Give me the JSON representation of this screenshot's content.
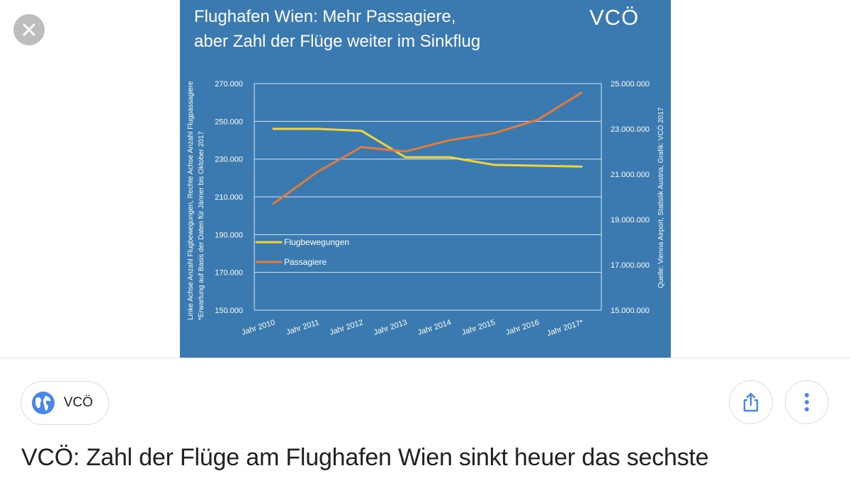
{
  "colors": {
    "panel_bg": "#3b7ab0",
    "flights": "#f1d43a",
    "passengers": "#e07c3e",
    "text_on_panel": "#ffffff",
    "close_button": "#bdbdbd",
    "icon_blue": "#4a86e8"
  },
  "viewer": {
    "close_icon": "close-icon"
  },
  "chart": {
    "brand": "VCÖ",
    "title_line1": "Flughafen Wien: Mehr Passagiere,",
    "title_line2": "aber Zahl der Flüge weiter im Sinkflug",
    "left_note_line1": "Linke Achse Anzahl Flugbewegungen, Rechte Achse Anzahl Flugpassagiere",
    "left_note_line2": "*Erwartung auf Basis der Daten für Jänner bis Oktober 2017",
    "right_note": "Quelle: Vienna Airport, Statistik Austria, Grafik: VCÖ 2017",
    "left_ticks": [
      "270.000",
      "250.000",
      "230.000",
      "210.000",
      "190.000",
      "170.000",
      "150.000"
    ],
    "right_ticks": [
      "25.000.000",
      "23.000.000",
      "21.000.000",
      "19.000.000",
      "17.000.000",
      "15.000.000"
    ]
  },
  "chart_data": {
    "type": "line",
    "title": "Flughafen Wien: Mehr Passagiere, aber Zahl der Flüge weiter im Sinkflug",
    "categories": [
      "Jahr 2010",
      "Jahr 2011",
      "Jahr 2012",
      "Jahr 2013",
      "Jahr 2014",
      "Jahr 2015",
      "Jahr 2016",
      "Jahr 2017*"
    ],
    "series": [
      {
        "name": "Flugbewegungen",
        "axis": "left",
        "color": "#f1d43a",
        "values": [
          246000,
          246000,
          245000,
          231000,
          231000,
          227000,
          226500,
          226000
        ]
      },
      {
        "name": "Passagiere",
        "axis": "right",
        "color": "#e07c3e",
        "values": [
          19700000,
          21100000,
          22200000,
          22000000,
          22500000,
          22800000,
          23400000,
          24600000
        ]
      }
    ],
    "ylim_left": [
      150000,
      270000
    ],
    "ylim_right": [
      15000000,
      25000000
    ],
    "grid": true,
    "legend_position": "bottom-left"
  },
  "source": {
    "label": "VCÖ",
    "icon": "globe-icon"
  },
  "actions": {
    "share_icon": "share-icon",
    "more_icon": "more-vertical-icon"
  },
  "result": {
    "title": "VCÖ: Zahl der Flüge am Flughafen Wien sinkt heuer das sechste"
  }
}
